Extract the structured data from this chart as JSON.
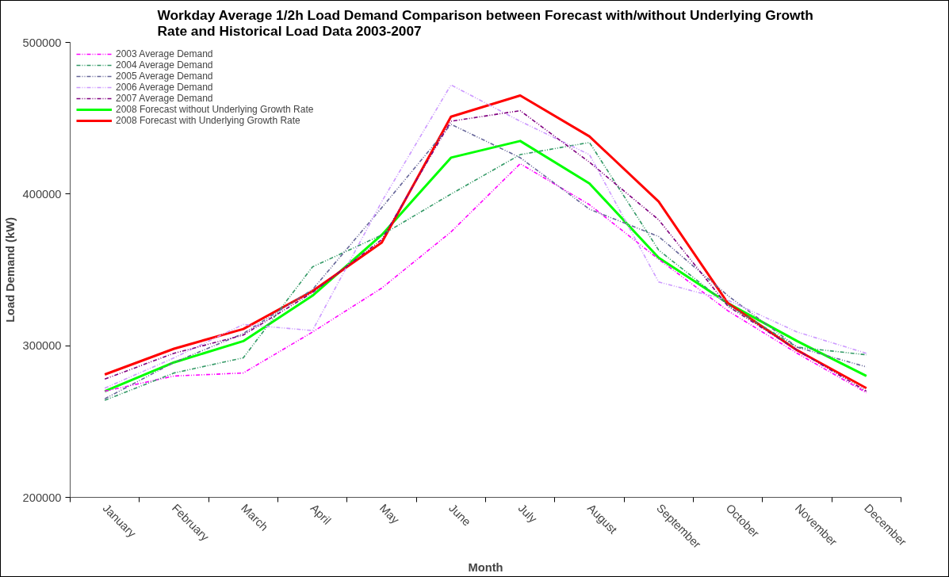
{
  "chart_data": {
    "type": "line",
    "title": "Workday Average 1/2h Load Demand Comparison between Forecast with/without Underlying Growth Rate and Historical Load Data 2003-2007",
    "xlabel": "Month",
    "ylabel": "Load Demand (kW)",
    "categories": [
      "January",
      "February",
      "March",
      "April",
      "May",
      "June",
      "July",
      "August",
      "September",
      "October",
      "November",
      "December"
    ],
    "ylim": [
      200000,
      500000
    ],
    "yticks": [
      200000,
      300000,
      400000,
      500000
    ],
    "grid": false,
    "legend": "top left",
    "marker": "none",
    "series": [
      {
        "name": "2003 Average Demand",
        "color": "#ff00ff",
        "line_style": "dashed",
        "values": [
          270000,
          280000,
          282000,
          309000,
          338000,
          375000,
          420000,
          393000,
          357000,
          323000,
          295000,
          269000
        ]
      },
      {
        "name": "2004 Average Demand",
        "color": "#339966",
        "line_style": "dashed",
        "values": [
          264000,
          282000,
          292000,
          352000,
          373000,
          400000,
          426000,
          434000,
          363000,
          327000,
          299000,
          294000
        ]
      },
      {
        "name": "2005 Average Demand",
        "color": "#666699",
        "line_style": "dashed",
        "values": [
          265000,
          289000,
          308000,
          337000,
          391000,
          446000,
          424000,
          390000,
          372000,
          333000,
          299000,
          286000
        ]
      },
      {
        "name": "2006 Average Demand",
        "color": "#cc99ff",
        "line_style": "dashed",
        "values": [
          272000,
          292000,
          314000,
          310000,
          395000,
          472000,
          448000,
          426000,
          342000,
          330000,
          309000,
          295000
        ]
      },
      {
        "name": "2007 Average Demand",
        "color": "#800080",
        "line_style": "dashed",
        "values": [
          278000,
          295000,
          307000,
          335000,
          370000,
          448000,
          455000,
          421000,
          383000,
          326000,
          297000,
          270000
        ]
      },
      {
        "name": "2008 Forecast without Underlying Growth Rate",
        "color": "#00ff00",
        "line_style": "solid",
        "values": [
          270000,
          289000,
          303000,
          333000,
          373000,
          424000,
          435000,
          407000,
          358000,
          328000,
          303000,
          280000
        ]
      },
      {
        "name": "2008 Forecast with Underlying Growth Rate",
        "color": "#ff0000",
        "line_style": "solid",
        "values": [
          281000,
          298000,
          311000,
          336000,
          368000,
          451000,
          465000,
          438000,
          395000,
          328000,
          297000,
          272000
        ]
      }
    ]
  }
}
